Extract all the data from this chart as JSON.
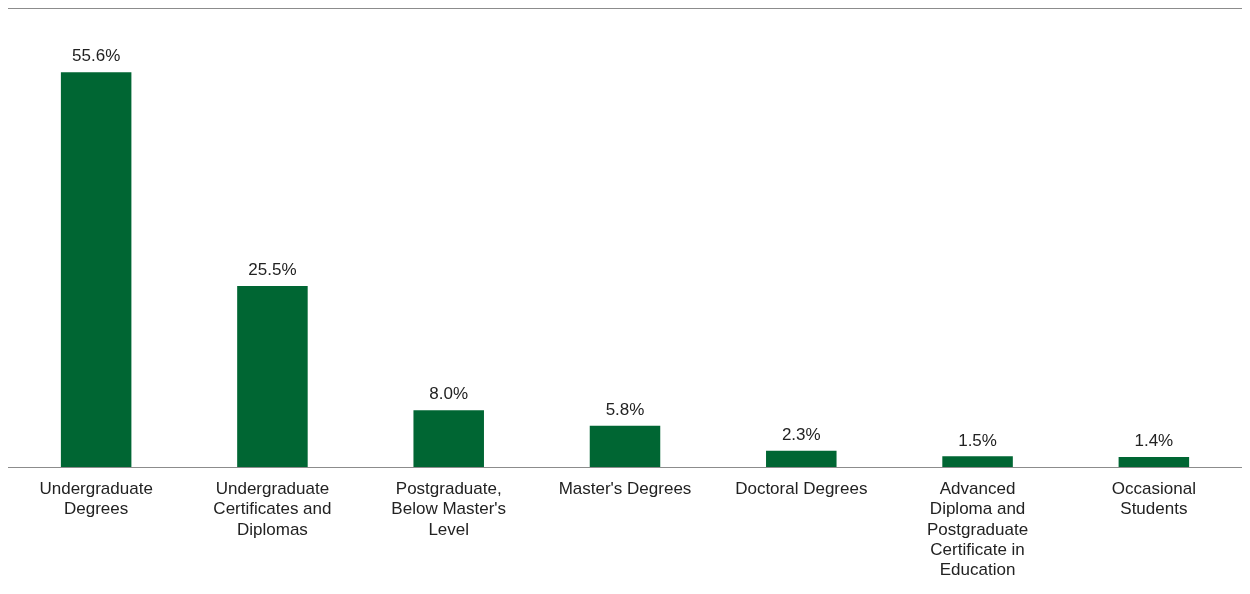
{
  "chart_data": {
    "type": "bar",
    "categories": [
      "Undergraduate Degrees",
      "Undergraduate Certificates and Diplomas",
      "Postgraduate, Below Master's Level",
      "Master's Degrees",
      "Doctoral Degrees",
      "Advanced Diploma and Postgraduate Certificate in Education",
      "Occasional Students"
    ],
    "values": [
      55.6,
      25.5,
      8.0,
      5.8,
      2.3,
      1.5,
      1.4
    ],
    "value_labels": [
      "55.6%",
      "25.5%",
      "8.0%",
      "5.8%",
      "2.3%",
      "1.5%",
      "1.4%"
    ],
    "color": "#006633"
  }
}
